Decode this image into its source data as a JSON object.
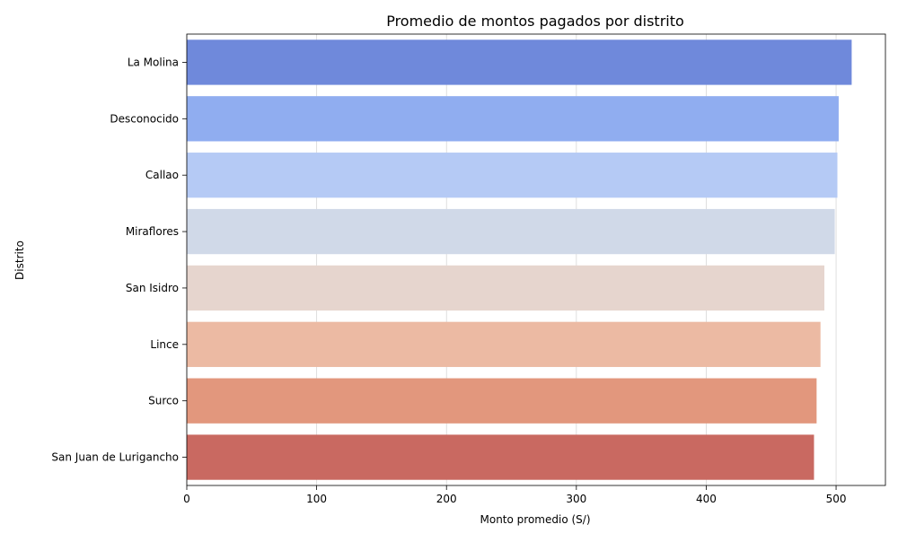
{
  "chart_data": {
    "type": "bar",
    "orientation": "horizontal",
    "title": "Promedio de montos pagados por distrito",
    "xlabel": "Monto promedio (S/)",
    "ylabel": "Distrito",
    "xlim": [
      0,
      538
    ],
    "xticks": [
      0,
      100,
      200,
      300,
      400,
      500
    ],
    "grid": "vertical",
    "legend": "none",
    "categories": [
      "La Molina",
      "Desconocido",
      "Callao",
      "Miraflores",
      "San Isidro",
      "Lince",
      "Surco",
      "San Juan de Lurigancho"
    ],
    "values": [
      512,
      502,
      501,
      499,
      491,
      488,
      485,
      483
    ],
    "colors": [
      "#6f89db",
      "#90adf0",
      "#b5caf5",
      "#d0d9e8",
      "#e6d5ce",
      "#ecbaa3",
      "#e2977d",
      "#c96961"
    ]
  }
}
